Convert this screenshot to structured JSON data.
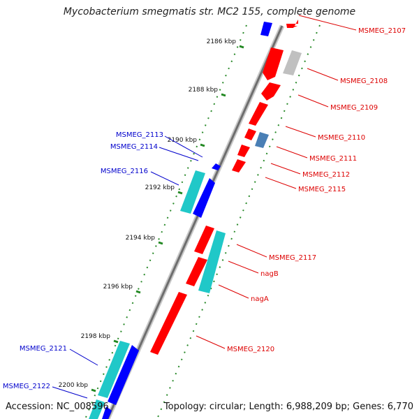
{
  "title": "Mycobacterium smegmatis str. MC2 155, complete genome",
  "footer": {
    "accession": "Accession: NC_008596",
    "summary": "Topology: circular; Length: 6,988,209 bp; Genes: 6,770"
  },
  "colors": {
    "forward_gene": "#ff0000",
    "reverse_gene": "#0000ff",
    "reverse_cds_pair": "#20c8c8",
    "highlight_gray": "#c0c0c0",
    "highlight_steel": "#4a7fb5",
    "label_forward": "#dd0000",
    "label_reverse": "#0000cc",
    "axis_tick": "#228822",
    "backbone": "#777777"
  },
  "ticks": [
    "2186 kbp",
    "2188 kbp",
    "2190 kbp",
    "2192 kbp",
    "2194 kbp",
    "2196 kbp",
    "2198 kbp",
    "2200 kbp"
  ],
  "forward_labels": [
    "MSMEG_2107",
    "MSMEG_2108",
    "MSMEG_2109",
    "MSMEG_2110",
    "MSMEG_2111",
    "MSMEG_2112",
    "MSMEG_2115",
    "MSMEG_2117",
    "nagB",
    "nagA",
    "MSMEG_2120"
  ],
  "reverse_labels": [
    "MSMEG_2113",
    "MSMEG_2114",
    "MSMEG_2116",
    "MSMEG_2121",
    "MSMEG_2122"
  ]
}
